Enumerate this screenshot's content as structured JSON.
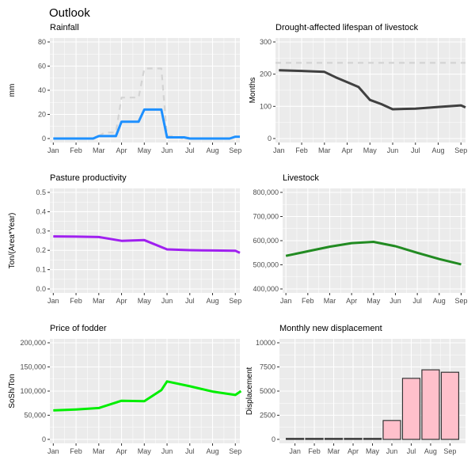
{
  "title": "Outlook",
  "chart_data": [
    {
      "id": "rainfall",
      "type": "line",
      "title": "Rainfall",
      "xlabel": "",
      "ylabel": "mm",
      "ylim": [
        0,
        80
      ],
      "yticks": [
        0,
        20,
        40,
        60,
        80
      ],
      "ytick_labels": [
        "0",
        "20",
        "40",
        "60",
        "80"
      ],
      "xlim": [
        0.85,
        9.2
      ],
      "xticks": [
        1,
        2,
        3,
        4,
        5,
        6,
        7,
        8,
        9
      ],
      "xtick_labels": [
        "Jan",
        "Feb",
        "Mar",
        "Apr",
        "May",
        "Jun",
        "Jul",
        "Aug",
        "Sep"
      ],
      "grid": true,
      "series": [
        {
          "name": "reference",
          "style": "dashed",
          "color": "#d3d3d3",
          "x": [
            3.0,
            3.25,
            3.75,
            4.0,
            4.25,
            4.75,
            5.0,
            5.25,
            5.75,
            6.0,
            6.25,
            6.75,
            7.0
          ],
          "y": [
            2,
            5,
            5,
            34,
            34,
            34,
            58,
            58,
            58,
            2,
            2,
            0,
            0
          ]
        },
        {
          "name": "rainfall",
          "style": "solid",
          "color": "#1e90ff",
          "x": [
            1.0,
            2.0,
            2.75,
            3.0,
            3.75,
            4.0,
            4.75,
            5.0,
            5.75,
            6.0,
            6.75,
            7.0,
            8.0,
            8.75,
            9.0,
            9.2
          ],
          "y": [
            0,
            0,
            0,
            2,
            2,
            14,
            14,
            24,
            24,
            1,
            1,
            0,
            0,
            0,
            1.5,
            1.5
          ]
        }
      ]
    },
    {
      "id": "lifespan",
      "type": "line",
      "title": "Drought-affected lifespan of livestock",
      "xlabel": "",
      "ylabel": "Months",
      "ylim": [
        0,
        300
      ],
      "yticks": [
        0,
        100,
        200,
        300
      ],
      "ytick_labels": [
        "0",
        "100",
        "200",
        "300"
      ],
      "xlim": [
        0.85,
        9.2
      ],
      "xticks": [
        1,
        2,
        3,
        4,
        5,
        6,
        7,
        8,
        9
      ],
      "xtick_labels": [
        "Jan",
        "Feb",
        "Mar",
        "Apr",
        "May",
        "Jun",
        "Jul",
        "Aug",
        "Sep"
      ],
      "grid": true,
      "series": [
        {
          "name": "reference",
          "style": "dashed",
          "color": "#d3d3d3",
          "x": [
            0.85,
            9.2
          ],
          "y": [
            235,
            235
          ]
        },
        {
          "name": "lifespan",
          "style": "solid",
          "color": "#404040",
          "x": [
            1.0,
            2.0,
            3.0,
            3.5,
            4.0,
            4.5,
            5.0,
            5.5,
            6.0,
            7.0,
            8.0,
            9.0,
            9.2
          ],
          "y": [
            212,
            210,
            207,
            190,
            175,
            160,
            120,
            107,
            91,
            93,
            98,
            103,
            97
          ]
        }
      ]
    },
    {
      "id": "pasture",
      "type": "line",
      "title": "Pasture productivity",
      "xlabel": "",
      "ylabel": "Ton/(Area*Year)",
      "ylim": [
        0,
        0.5
      ],
      "yticks": [
        0,
        0.1,
        0.2,
        0.3,
        0.4,
        0.5
      ],
      "ytick_labels": [
        "0.0",
        "0.1",
        "0.2",
        "0.3",
        "0.4",
        "0.5"
      ],
      "xlim": [
        0.85,
        9.2
      ],
      "xticks": [
        1,
        2,
        3,
        4,
        5,
        6,
        7,
        8,
        9
      ],
      "xtick_labels": [
        "Jan",
        "Feb",
        "Mar",
        "Apr",
        "May",
        "Jun",
        "Jul",
        "Aug",
        "Sep"
      ],
      "grid": true,
      "series": [
        {
          "name": "pasture",
          "style": "solid",
          "color": "#a020f0",
          "x": [
            1.0,
            2.0,
            3.0,
            4.0,
            5.0,
            6.0,
            7.0,
            8.0,
            9.0,
            9.2
          ],
          "y": [
            0.272,
            0.271,
            0.269,
            0.249,
            0.253,
            0.205,
            0.201,
            0.199,
            0.198,
            0.187
          ]
        }
      ]
    },
    {
      "id": "livestock",
      "type": "line",
      "title": "Livestock",
      "xlabel": "",
      "ylabel": "",
      "ylim": [
        400000,
        800000
      ],
      "yticks": [
        400000,
        500000,
        600000,
        700000,
        800000
      ],
      "ytick_labels": [
        "400,000",
        "500,000",
        "600,000",
        "700,000",
        "800,000"
      ],
      "xlim": [
        0.85,
        9.2
      ],
      "xticks": [
        1,
        2,
        3,
        4,
        5,
        6,
        7,
        8,
        9
      ],
      "xtick_labels": [
        "Jan",
        "Feb",
        "Mar",
        "Apr",
        "May",
        "Jun",
        "Jul",
        "Aug",
        "Sep"
      ],
      "grid": true,
      "series": [
        {
          "name": "livestock",
          "style": "solid",
          "color": "#228b22",
          "x": [
            1.0,
            2.0,
            3.0,
            4.0,
            5.0,
            6.0,
            7.0,
            8.0,
            9.0
          ],
          "y": [
            537000,
            556000,
            575000,
            590000,
            595000,
            577000,
            550000,
            524000,
            502000
          ]
        }
      ]
    },
    {
      "id": "fodder",
      "type": "line",
      "title": "Price of fodder",
      "xlabel": "",
      "ylabel": "SoSh/Ton",
      "ylim": [
        0,
        200000
      ],
      "yticks": [
        0,
        50000,
        100000,
        150000,
        200000
      ],
      "ytick_labels": [
        "0",
        "50,000",
        "100,000",
        "150,000",
        "200,000"
      ],
      "xlim": [
        0.85,
        9.2
      ],
      "xticks": [
        1,
        2,
        3,
        4,
        5,
        6,
        7,
        8,
        9
      ],
      "xtick_labels": [
        "Jan",
        "Feb",
        "Mar",
        "Apr",
        "May",
        "Jun",
        "Jul",
        "Aug",
        "Sep"
      ],
      "grid": true,
      "series": [
        {
          "name": "fodder",
          "style": "solid",
          "color": "#00ee00",
          "x": [
            1.0,
            2.0,
            3.0,
            4.0,
            5.0,
            5.75,
            6.0,
            7.0,
            8.0,
            9.0,
            9.25
          ],
          "y": [
            60000,
            62000,
            65000,
            80000,
            79000,
            102000,
            120000,
            110000,
            99000,
            92000,
            100000
          ]
        }
      ]
    },
    {
      "id": "displacement",
      "type": "bar",
      "title": "Monthly new displacement",
      "xlabel": "",
      "ylabel": "Displacement",
      "ylim": [
        0,
        10000
      ],
      "yticks": [
        0,
        2500,
        5000,
        7500,
        10000
      ],
      "ytick_labels": [
        "0",
        "2500",
        "5000",
        "7500",
        "10000"
      ],
      "grid": true,
      "categories": [
        "Jan",
        "Feb",
        "Mar",
        "Apr",
        "May",
        "Jun",
        "Jul",
        "Aug",
        "Sep"
      ],
      "values": [
        0,
        0,
        0,
        0,
        0,
        1950,
        6320,
        7200,
        6950
      ],
      "bar_fill": "#ffc0cb",
      "bar_stroke": "#333333"
    }
  ]
}
